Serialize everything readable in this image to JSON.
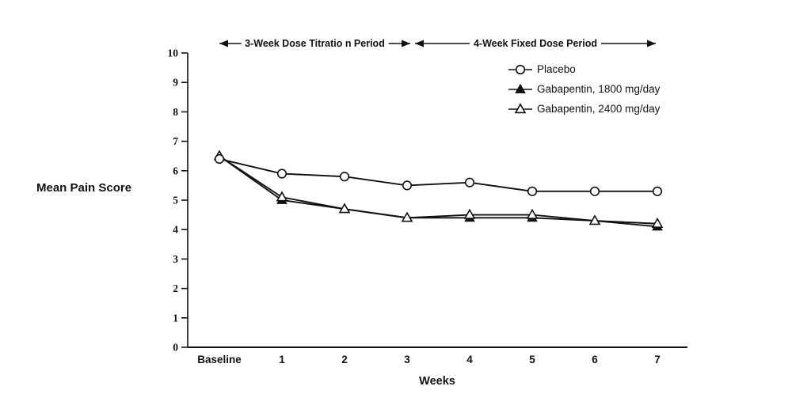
{
  "figure": {
    "background_color": "#ffffff",
    "ink_color": "#111111"
  },
  "chart_data": {
    "type": "line",
    "title": "",
    "xlabel": "Weeks",
    "ylabel": "Mean Pain Score",
    "categories": [
      "Baseline",
      "1",
      "2",
      "3",
      "4",
      "5",
      "6",
      "7"
    ],
    "ylim": [
      0,
      10
    ],
    "yticks": [
      0,
      1,
      2,
      3,
      4,
      5,
      6,
      7,
      8,
      9,
      10
    ],
    "grid": "off",
    "legend_position": "upper right inside plot",
    "series": [
      {
        "name": "Placebo",
        "marker": "circle-open",
        "values": [
          6.4,
          5.9,
          5.8,
          5.5,
          5.6,
          5.3,
          5.3,
          5.3
        ]
      },
      {
        "name": "Gabapentin, 1800 mg/day",
        "marker": "triangle-filled",
        "values": [
          6.5,
          5.0,
          4.7,
          4.4,
          4.4,
          4.4,
          4.3,
          4.1
        ]
      },
      {
        "name": "Gabapentin, 2400 mg/day",
        "marker": "triangle-open",
        "values": [
          6.5,
          5.1,
          4.7,
          4.4,
          4.5,
          4.5,
          4.3,
          4.2
        ]
      }
    ],
    "annotations": [
      {
        "label": "3-Week Dose Titratio n Period",
        "from_week": 0,
        "to_week": 3
      },
      {
        "label": "4-Week Fixed Dose Period",
        "from_week": 3,
        "to_week": 7
      }
    ]
  }
}
